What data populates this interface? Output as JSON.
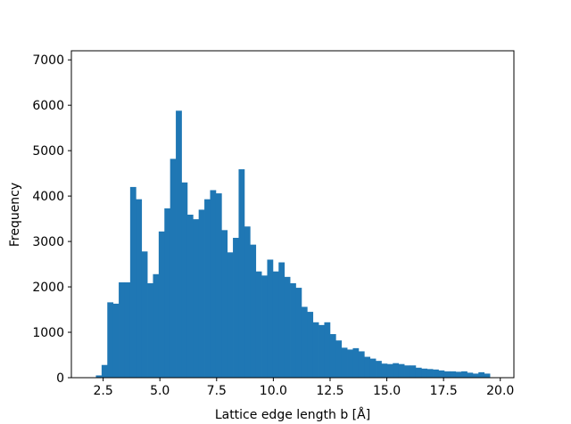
{
  "chart_data": {
    "type": "histogram",
    "title": "",
    "xlabel": "Lattice edge length b [Å]",
    "ylabel": "Frequency",
    "xlim": [
      1.1,
      20.6
    ],
    "ylim": [
      0,
      7200
    ],
    "x_ticks": [
      2.5,
      5.0,
      7.5,
      10.0,
      12.5,
      15.0,
      17.5,
      20.0
    ],
    "x_tick_labels": [
      "2.5",
      "5.0",
      "7.5",
      "10.0",
      "12.5",
      "15.0",
      "17.5",
      "20.0"
    ],
    "y_ticks": [
      0,
      1000,
      2000,
      3000,
      4000,
      5000,
      6000,
      7000
    ],
    "y_tick_labels": [
      "0",
      "1000",
      "2000",
      "3000",
      "4000",
      "5000",
      "6000",
      "7000"
    ],
    "bin_start": 2.18,
    "bin_width": 0.2516,
    "bar_color": "#1f77b4",
    "counts": [
      50,
      280,
      1660,
      1630,
      2100,
      2100,
      4200,
      3930,
      2780,
      2080,
      2280,
      3220,
      3730,
      4820,
      5880,
      4300,
      3590,
      3490,
      3700,
      3930,
      4130,
      4060,
      3250,
      2760,
      3080,
      4590,
      3330,
      2930,
      2340,
      2250,
      2600,
      2340,
      2540,
      2220,
      2080,
      1980,
      1560,
      1450,
      1220,
      1160,
      1220,
      960,
      820,
      660,
      620,
      650,
      580,
      460,
      420,
      370,
      310,
      300,
      320,
      300,
      270,
      270,
      220,
      200,
      190,
      180,
      160,
      140,
      140,
      130,
      140,
      110,
      90,
      120,
      90
    ]
  }
}
